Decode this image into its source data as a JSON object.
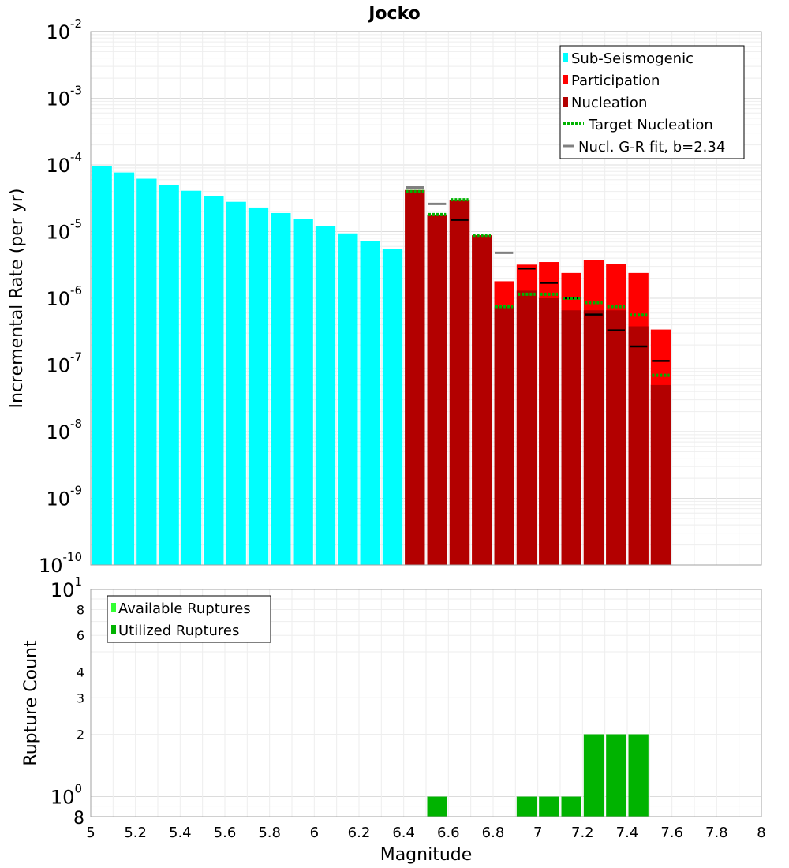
{
  "chart_data": [
    {
      "type": "bar",
      "title": "Jocko",
      "ylabel": "Incremental Rate (per yr)",
      "xlim": [
        5,
        8
      ],
      "ylim": [
        1e-10,
        0.01
      ],
      "yscale": "log",
      "grid": true,
      "legend_placement": "top-right",
      "y_tick_exponents": [
        "-2",
        "-3",
        "-4",
        "-5",
        "-6",
        "-7",
        "-8",
        "-9",
        "-10"
      ],
      "y_tick_base": "10",
      "legend": [
        {
          "label": "Sub-Seismogenic",
          "kind": "bar",
          "color": "#00ffff"
        },
        {
          "label": "Participation",
          "kind": "bar",
          "color": "#ff0000"
        },
        {
          "label": "Nucleation",
          "kind": "bar",
          "color": "#b30000"
        },
        {
          "label": "Target Nucleation",
          "kind": "dotted",
          "color": "#00b300"
        },
        {
          "label": "Nucl. G-R fit, b=2.34",
          "kind": "line",
          "color": "#808080"
        }
      ],
      "series": [
        {
          "name": "Sub-Seismogenic",
          "color": "#00ffff",
          "x": [
            5.05,
            5.15,
            5.25,
            5.35,
            5.45,
            5.55,
            5.65,
            5.75,
            5.85,
            5.95,
            6.05,
            6.15,
            6.25,
            6.35
          ],
          "values": [
            9.5e-05,
            7.7e-05,
            6.2e-05,
            5e-05,
            4.1e-05,
            3.4e-05,
            2.8e-05,
            2.3e-05,
            1.9e-05,
            1.55e-05,
            1.2e-05,
            9.4e-06,
            7.2e-06,
            5.5e-06
          ]
        },
        {
          "name": "Participation",
          "color": "#ff0000",
          "x": [
            6.45,
            6.55,
            6.65,
            6.75,
            6.85,
            6.95,
            7.05,
            7.15,
            7.25,
            7.35,
            7.45,
            7.55
          ],
          "values": [
            4.2e-05,
            1.8e-05,
            3e-05,
            8.8e-06,
            1.8e-06,
            3.2e-06,
            3.5e-06,
            2.4e-06,
            3.7e-06,
            3.3e-06,
            2.4e-06,
            3.4e-07
          ]
        },
        {
          "name": "Nucleation",
          "color": "#b30000",
          "x": [
            6.45,
            6.55,
            6.65,
            6.75,
            6.85,
            6.95,
            7.05,
            7.15,
            7.25,
            7.35,
            7.45,
            7.55
          ],
          "values": [
            4.2e-05,
            1.8e-05,
            3e-05,
            8.8e-06,
            7.5e-07,
            1.3e-06,
            1e-06,
            6.6e-07,
            6.6e-07,
            6.6e-07,
            3.8e-07,
            5e-08
          ]
        },
        {
          "name": "Target Nucleation",
          "color": "#00b300",
          "x": [
            6.45,
            6.55,
            6.65,
            6.75,
            6.85,
            6.95,
            7.05,
            7.15,
            7.25,
            7.35,
            7.45,
            7.55
          ],
          "values": [
            4e-05,
            1.8e-05,
            3e-05,
            8.8e-06,
            7.5e-07,
            1.15e-06,
            1.15e-06,
            1e-06,
            8.6e-07,
            7.5e-07,
            5.6e-07,
            7e-08
          ]
        },
        {
          "name": "Nucl. G-R fit, b=2.34",
          "color": "#808080",
          "x": [
            6.45,
            6.55,
            6.85
          ],
          "values": [
            4.6e-05,
            2.6e-05,
            4.8e-06
          ]
        },
        {
          "name": "Black markers",
          "color": "#000000",
          "x": [
            6.65,
            6.95,
            7.05,
            7.15,
            7.25,
            7.35,
            7.45,
            7.55
          ],
          "values": [
            1.5e-05,
            2.8e-06,
            1.7e-06,
            1e-06,
            5.7e-07,
            3.3e-07,
            1.9e-07,
            1.15e-07
          ]
        }
      ]
    },
    {
      "type": "bar",
      "xlabel": "Magnitude",
      "ylabel": "Rupture Count",
      "xlim": [
        5,
        8
      ],
      "ylim": [
        0.8,
        10
      ],
      "yscale": "log",
      "grid": true,
      "legend_placement": "top-left",
      "x_ticks": [
        "5",
        "5.2",
        "5.4",
        "5.6",
        "5.8",
        "6",
        "6.2",
        "6.4",
        "6.6",
        "6.8",
        "7",
        "7.2",
        "7.4",
        "7.6",
        "7.8",
        "8"
      ],
      "y_tick_labels": [
        {
          "value": 8,
          "label": "8"
        },
        {
          "value": 6,
          "label": "6"
        },
        {
          "value": 4,
          "label": "4"
        },
        {
          "value": 3,
          "label": "3"
        },
        {
          "value": 2,
          "label": "2"
        }
      ],
      "y_decade_labels": [
        {
          "value": 10,
          "base": "10",
          "exp": "1"
        },
        {
          "value": 1,
          "base": "10",
          "exp": "0"
        }
      ],
      "y_bottom_label": "8",
      "legend": [
        {
          "label": "Available Ruptures",
          "color": "#33ff33"
        },
        {
          "label": "Utilized Ruptures",
          "color": "#00b300"
        }
      ],
      "series": [
        {
          "name": "Utilized Ruptures",
          "color": "#00b300",
          "x": [
            6.55,
            6.95,
            7.05,
            7.15,
            7.25,
            7.35,
            7.45
          ],
          "values": [
            1,
            1,
            1,
            1,
            2,
            2,
            2
          ]
        }
      ]
    }
  ]
}
